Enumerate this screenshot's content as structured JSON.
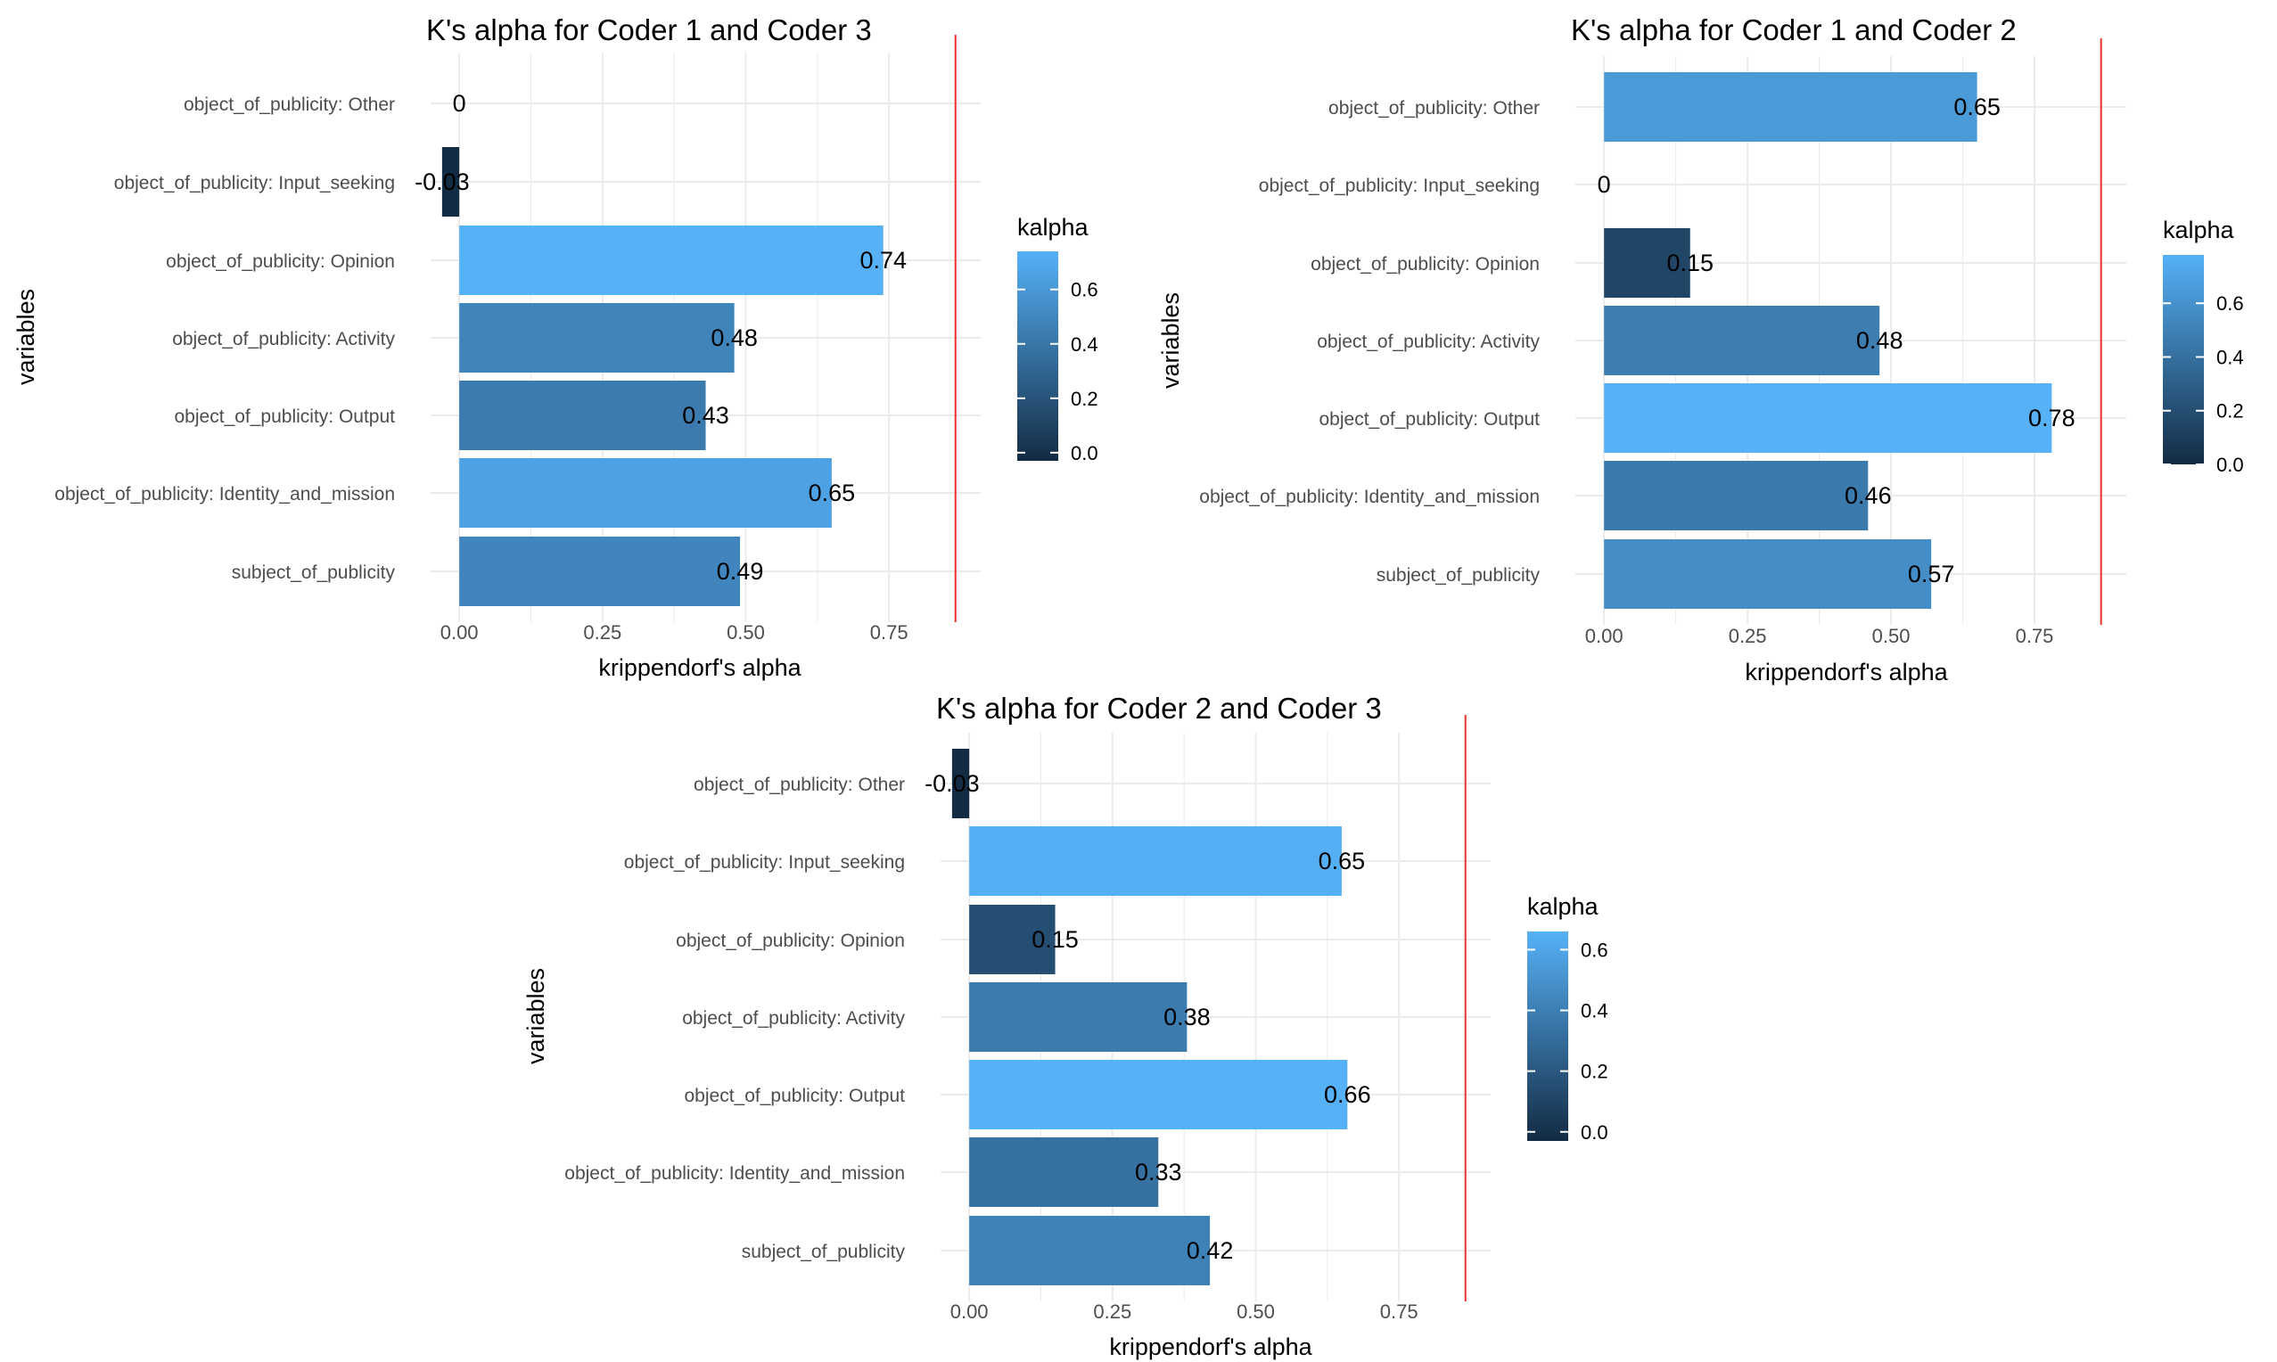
{
  "chart_data": [
    {
      "type": "bar",
      "orientation": "horizontal",
      "title": "K's alpha for Coder 1 and Coder 3",
      "xlabel": "krippendorf's alpha",
      "ylabel": "variables",
      "categories": [
        "object_of_publicity: Other",
        "object_of_publicity: Input_seeking",
        "object_of_publicity: Opinion",
        "object_of_publicity: Activity",
        "object_of_publicity: Output",
        "object_of_publicity: Identity_and_mission",
        "subject_of_publicity"
      ],
      "values": [
        0,
        -0.03,
        0.74,
        0.48,
        0.43,
        0.65,
        0.49
      ],
      "labels": [
        "0",
        "-0.03",
        "0.74",
        "0.48",
        "0.43",
        "0.65",
        "0.49"
      ],
      "xlim": [
        -0.05,
        0.91
      ],
      "xticks": [
        0,
        0.25,
        0.5,
        0.75
      ],
      "xtick_labels": [
        "0.00",
        "0.25",
        "0.50",
        "0.75"
      ],
      "reference_line": 0.866,
      "reference_color": "#e8322c",
      "grid": true,
      "legend": {
        "title": "kalpha",
        "position": "right",
        "range": [
          -0.03,
          0.74
        ],
        "ticks": [
          0,
          0.2,
          0.4,
          0.6
        ],
        "tick_labels": [
          "0.0",
          "0.2",
          "0.4",
          "0.6"
        ]
      }
    },
    {
      "type": "bar",
      "orientation": "horizontal",
      "title": "K's alpha for Coder 1 and Coder 2",
      "xlabel": "krippendorf's alpha",
      "ylabel": "variables",
      "categories": [
        "object_of_publicity: Other",
        "object_of_publicity: Input_seeking",
        "object_of_publicity: Opinion",
        "object_of_publicity: Activity",
        "object_of_publicity: Output",
        "object_of_publicity: Identity_and_mission",
        "subject_of_publicity"
      ],
      "values": [
        0.65,
        0,
        0.15,
        0.48,
        0.78,
        0.46,
        0.57
      ],
      "labels": [
        "0.65",
        "0",
        "0.15",
        "0.48",
        "0.78",
        "0.46",
        "0.57"
      ],
      "xlim": [
        -0.05,
        0.91
      ],
      "xticks": [
        0,
        0.25,
        0.5,
        0.75
      ],
      "xtick_labels": [
        "0.00",
        "0.25",
        "0.50",
        "0.75"
      ],
      "reference_line": 0.866,
      "reference_color": "#e8322c",
      "grid": true,
      "legend": {
        "title": "kalpha",
        "position": "right",
        "range": [
          0,
          0.78
        ],
        "ticks": [
          0,
          0.2,
          0.4,
          0.6
        ],
        "tick_labels": [
          "0.0",
          "0.2",
          "0.4",
          "0.6"
        ]
      }
    },
    {
      "type": "bar",
      "orientation": "horizontal",
      "title": "K's alpha for Coder 2 and Coder 3",
      "xlabel": "krippendorf's alpha",
      "ylabel": "variables",
      "categories": [
        "object_of_publicity: Other",
        "object_of_publicity: Input_seeking",
        "object_of_publicity: Opinion",
        "object_of_publicity: Activity",
        "object_of_publicity: Output",
        "object_of_publicity: Identity_and_mission",
        "subject_of_publicity"
      ],
      "values": [
        -0.03,
        0.65,
        0.15,
        0.38,
        0.66,
        0.33,
        0.42
      ],
      "labels": [
        "-0.03",
        "0.65",
        "0.15",
        "0.38",
        "0.66",
        "0.33",
        "0.42"
      ],
      "xlim": [
        -0.05,
        0.91
      ],
      "xticks": [
        0,
        0.25,
        0.5,
        0.75
      ],
      "xtick_labels": [
        "0.00",
        "0.25",
        "0.50",
        "0.75"
      ],
      "reference_line": 0.866,
      "reference_color": "#e8322c",
      "grid": true,
      "legend": {
        "title": "kalpha",
        "position": "right",
        "range": [
          -0.03,
          0.66
        ],
        "ticks": [
          0,
          0.2,
          0.4,
          0.6
        ],
        "tick_labels": [
          "0.0",
          "0.2",
          "0.4",
          "0.6"
        ]
      }
    }
  ],
  "colors": {
    "low": "#132b43",
    "high": "#56b1f7",
    "grid": "#ebebeb",
    "axis_text": "#4d4d4d",
    "text": "#000000"
  }
}
